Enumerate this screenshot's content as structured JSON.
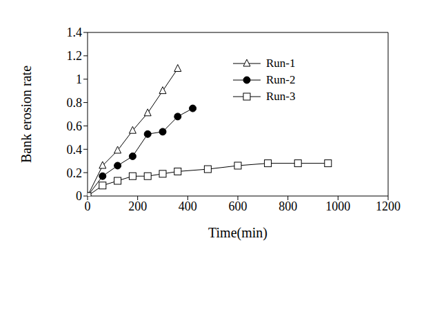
{
  "chart_data": {
    "type": "line",
    "x_label": "Time(min)",
    "y_label": "Bank erosion rate",
    "xlim": [
      0,
      1200
    ],
    "xticks": [
      0,
      200,
      400,
      600,
      800,
      1000,
      1200
    ],
    "ylim": [
      0,
      1.4
    ],
    "yticks": [
      0,
      0.2,
      0.4,
      0.6,
      0.8,
      1,
      1.2,
      1.4
    ],
    "grid": false,
    "legend": "upper right",
    "series": [
      {
        "name": "Run-1",
        "color": "#000000",
        "marker": "open_triangle",
        "line_style": "solid",
        "x": [
          0,
          60,
          120,
          180,
          240,
          300,
          360
        ],
        "values": [
          0,
          0.26,
          0.39,
          0.56,
          0.71,
          0.9,
          1.09
        ]
      },
      {
        "name": "Run-2",
        "color": "#000000",
        "marker": "filled_circle",
        "line_style": "solid",
        "x": [
          0,
          60,
          120,
          180,
          240,
          300,
          360,
          420
        ],
        "values": [
          0,
          0.17,
          0.26,
          0.34,
          0.53,
          0.55,
          0.68,
          0.75
        ]
      },
      {
        "name": "Run-3",
        "color": "#000000",
        "marker": "open_square",
        "line_style": "solid",
        "x": [
          0,
          60,
          120,
          180,
          240,
          300,
          360,
          480,
          600,
          720,
          840,
          960
        ],
        "values": [
          0,
          0.09,
          0.13,
          0.17,
          0.17,
          0.19,
          0.21,
          0.23,
          0.26,
          0.28,
          0.28,
          0.28
        ]
      }
    ]
  }
}
